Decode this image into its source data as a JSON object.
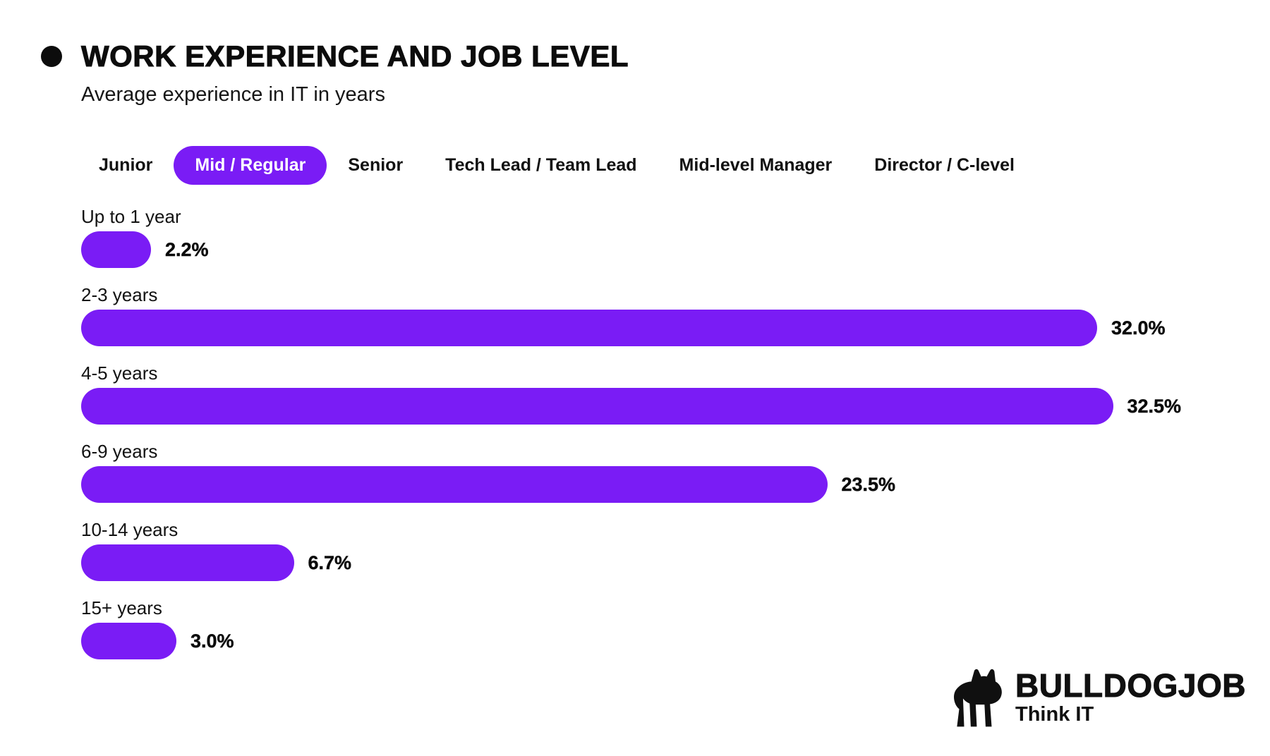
{
  "colors": {
    "accent": "#7a1cf5",
    "text": "#0c0c0c"
  },
  "header": {
    "bullet_icon": "filled-circle-icon",
    "title": "WORK EXPERIENCE AND JOB LEVEL",
    "subtitle": "Average experience in IT in years"
  },
  "tabs": {
    "items": [
      {
        "label": "Junior",
        "active": false
      },
      {
        "label": "Mid / Regular",
        "active": true
      },
      {
        "label": "Senior",
        "active": false
      },
      {
        "label": "Tech Lead / Team Lead",
        "active": false
      },
      {
        "label": "Mid-level Manager",
        "active": false
      },
      {
        "label": "Director / C-level",
        "active": false
      }
    ]
  },
  "chart_data": {
    "type": "bar",
    "orientation": "horizontal",
    "title": "WORK EXPERIENCE AND JOB LEVEL",
    "subtitle": "Average experience in IT in years",
    "selected_series": "Mid / Regular",
    "categories": [
      "Up to 1 year",
      "2-3 years",
      "4-5 years",
      "6-9 years",
      "10-14 years",
      "15+ years"
    ],
    "values": [
      2.2,
      32.0,
      32.5,
      23.5,
      6.7,
      3.0
    ],
    "value_labels": [
      "2.2%",
      "32.0%",
      "32.5%",
      "23.5%",
      "6.7%",
      "3.0%"
    ],
    "xlim": [
      0,
      33
    ],
    "grid": false,
    "legend": false,
    "bar_color": "#7a1cf5",
    "value_label_position": "right-of-bar"
  },
  "logo": {
    "icon": "bulldog-icon",
    "name": "BULLDOGJOB",
    "tagline": "Think IT"
  }
}
